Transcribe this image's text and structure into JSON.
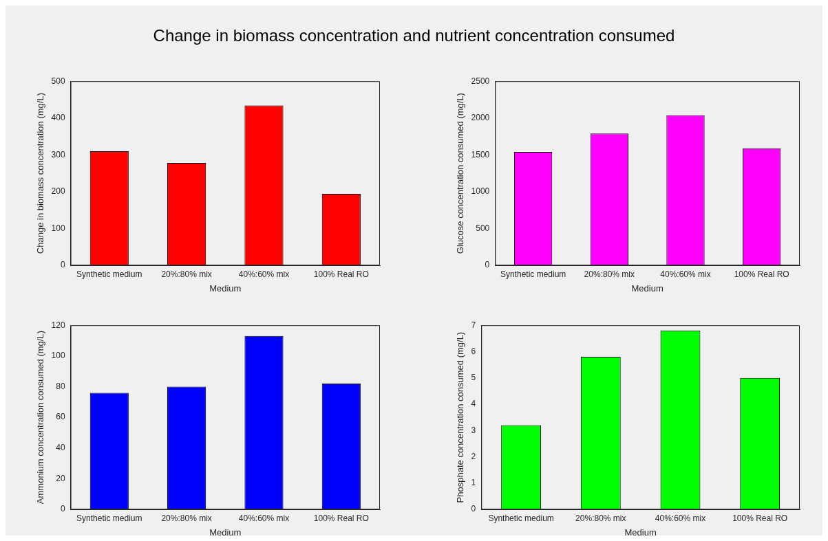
{
  "chart_data": [
    {
      "type": "bar",
      "title": "Change in biomass concentration and nutrient concentration consumed",
      "categories": [
        "Synthetic medium",
        "20%:80% mix",
        "40%:60% mix",
        "100% Real RO"
      ],
      "xlabel": "Medium",
      "ylabel": "Change in biomass concentration (mg/L)",
      "values": [
        310,
        278,
        434,
        194
      ],
      "color": "#ff0000",
      "ylim": [
        0,
        500
      ],
      "yticks": [
        0,
        100,
        200,
        300,
        400,
        500
      ]
    },
    {
      "type": "bar",
      "categories": [
        "Synthetic medium",
        "20%:80% mix",
        "40%:60% mix",
        "100% Real RO"
      ],
      "xlabel": "Medium",
      "ylabel": "Glucose concentration consumed (mg/L)",
      "values": [
        1540,
        1790,
        2040,
        1590
      ],
      "color": "#ff00ff",
      "ylim": [
        0,
        2500
      ],
      "yticks": [
        0,
        500,
        1000,
        1500,
        2000,
        2500
      ]
    },
    {
      "type": "bar",
      "categories": [
        "Synthetic medium",
        "20%:80% mix",
        "40%:60% mix",
        "100% Real RO"
      ],
      "xlabel": "Medium",
      "ylabel": "Ammonium concentration consumed (mg/L)",
      "values": [
        76,
        80,
        113,
        82
      ],
      "color": "#0000ff",
      "ylim": [
        0,
        120
      ],
      "yticks": [
        0,
        20,
        40,
        60,
        80,
        100,
        120
      ]
    },
    {
      "type": "bar",
      "categories": [
        "Synthetic medium",
        "20%:80% mix",
        "40%:60% mix",
        "100% Real RO"
      ],
      "xlabel": "Medium",
      "ylabel": "Phosphate concentration consumed (mg/L)",
      "values": [
        3.2,
        5.8,
        6.8,
        5.0
      ],
      "color": "#00ff00",
      "ylim": [
        0,
        7
      ],
      "yticks": [
        0,
        1,
        2,
        3,
        4,
        5,
        6,
        7
      ]
    }
  ]
}
